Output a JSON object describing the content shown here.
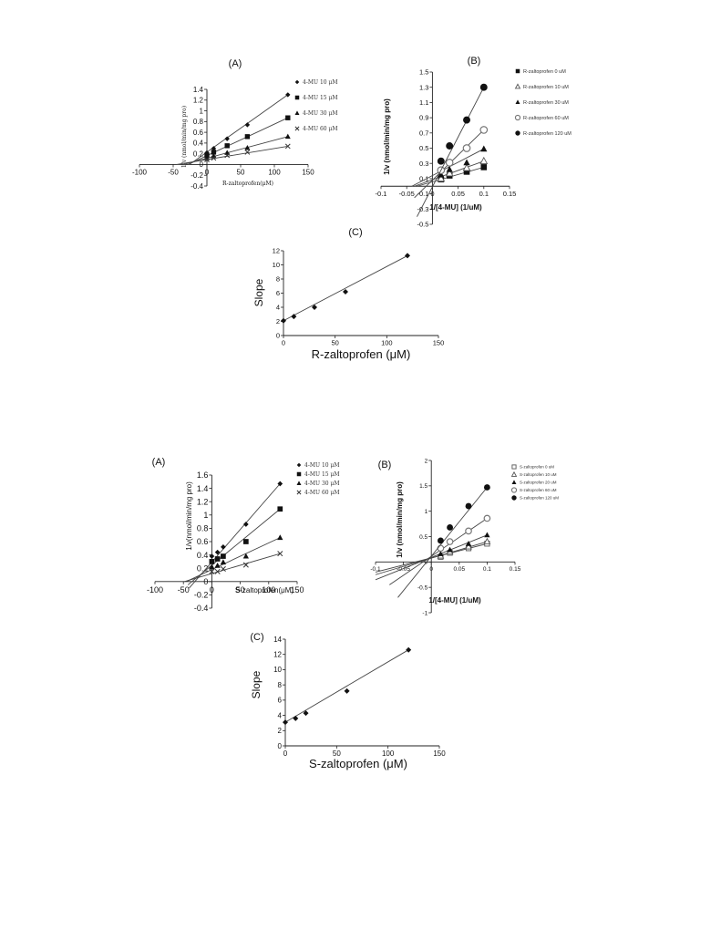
{
  "figures": [
    {
      "id": "R",
      "panels": [
        {
          "key": "A",
          "panel_label": "(A)",
          "chart_data": {
            "type": "scatter",
            "title": "(A)",
            "xlabel": "R-zaltoprofen(μM)",
            "ylabel": "1/v (nmol/min/mg pro)",
            "xlim": [
              -100,
              150
            ],
            "ylim": [
              -0.4,
              1.4
            ],
            "xticks": [
              -100,
              -50,
              0,
              50,
              100,
              150
            ],
            "xtick_labels": [
              "-100",
              "-50",
              "0",
              "50",
              "100",
              "150"
            ],
            "yticks": [
              -0.4,
              -0.2,
              0,
              0.2,
              0.4,
              0.6,
              0.8,
              1,
              1.2,
              1.4
            ],
            "ytick_labels": [
              "-0.4",
              "-0.2",
              "0",
              "0.2",
              "0.4",
              "0.6",
              "0.8",
              "1",
              "1.2",
              "1.4"
            ],
            "legend_position": "right",
            "series": [
              {
                "name": "4-MU 10 μM",
                "marker": "diamond",
                "x": [
                  0,
                  10,
                  30,
                  60,
                  120
                ],
                "y": [
                  0.22,
                  0.3,
                  0.48,
                  0.74,
                  1.3
                ],
                "line": [
                  -26,
                  0,
                  120,
                  1.3
                ]
              },
              {
                "name": "4-MU 15 μM",
                "marker": "square",
                "x": [
                  0,
                  10,
                  30,
                  60,
                  120
                ],
                "y": [
                  0.17,
                  0.23,
                  0.35,
                  0.52,
                  0.87
                ],
                "line": [
                  -28,
                  0,
                  120,
                  0.87
                ]
              },
              {
                "name": "4-MU 30 μM",
                "marker": "triangle",
                "x": [
                  0,
                  10,
                  30,
                  60,
                  120
                ],
                "y": [
                  0.12,
                  0.16,
                  0.22,
                  0.31,
                  0.52
                ],
                "line": [
                  -35,
                  0,
                  120,
                  0.52
                ]
              },
              {
                "name": "4-MU 60 μM",
                "marker": "x",
                "x": [
                  0,
                  10,
                  30,
                  60,
                  120
                ],
                "y": [
                  0.09,
                  0.12,
                  0.17,
                  0.23,
                  0.34
                ],
                "line": [
                  -45,
                  0,
                  120,
                  0.34
                ]
              }
            ]
          }
        },
        {
          "key": "B",
          "panel_label": "(B)",
          "chart_data": {
            "type": "scatter",
            "title": "(B)",
            "xlabel": "1/[4-MU] (1/uM)",
            "ylabel": "1/v (nmol/min/mg pro)",
            "xlim": [
              -0.1,
              0.15
            ],
            "ylim": [
              -0.5,
              1.5
            ],
            "xticks": [
              -0.1,
              -0.05,
              0,
              0.05,
              0.1,
              0.15
            ],
            "xtick_labels": [
              "-0.1",
              "-0.05",
              "0",
              "0.05",
              "0.1",
              "0.15"
            ],
            "yticks": [
              -0.5,
              -0.3,
              -0.1,
              0.1,
              0.3,
              0.5,
              0.7,
              0.9,
              1.1,
              1.3,
              1.5
            ],
            "ytick_labels": [
              "-0.5",
              "-0.3",
              "-0.1",
              "0.1",
              "0.3",
              "0.5",
              "0.7",
              "0.9",
              "1.1",
              "1.3",
              "1.5"
            ],
            "legend_position": "right",
            "series": [
              {
                "name": "R-zaltoprofen 0 uM",
                "marker": "square",
                "x": [
                  0.0167,
                  0.0333,
                  0.0667,
                  0.1
                ],
                "y": [
                  0.09,
                  0.14,
                  0.19,
                  0.25
                ],
                "line": [
                  -0.03,
                  0,
                  0.1,
                  0.25
                ]
              },
              {
                "name": "R-zaltoprofen 10 uM",
                "marker": "open-triangle",
                "x": [
                  0.0167,
                  0.0333,
                  0.0667,
                  0.1
                ],
                "y": [
                  0.1,
                  0.17,
                  0.24,
                  0.33
                ],
                "line": [
                  -0.035,
                  0,
                  0.1,
                  0.33
                ]
              },
              {
                "name": "R-zaltoprofen 30 uM",
                "marker": "triangle",
                "x": [
                  0.0167,
                  0.0333,
                  0.0667,
                  0.1
                ],
                "y": [
                  0.15,
                  0.22,
                  0.31,
                  0.49
                ],
                "line": [
                  -0.04,
                  0,
                  0.1,
                  0.49
                ]
              },
              {
                "name": "R-zaltoprofen 60 uM",
                "marker": "open-circle",
                "x": [
                  0.0167,
                  0.0333,
                  0.0667,
                  0.1
                ],
                "y": [
                  0.21,
                  0.31,
                  0.5,
                  0.74
                ],
                "line": [
                  -0.035,
                  -0.15,
                  0.1,
                  0.74
                ]
              },
              {
                "name": "R-zaltoprofen 120 uM",
                "marker": "circle",
                "x": [
                  0.0167,
                  0.0333,
                  0.0667,
                  0.1
                ],
                "y": [
                  0.33,
                  0.53,
                  0.87,
                  1.3
                ],
                "line": [
                  -0.03,
                  -0.4,
                  0.1,
                  1.3
                ]
              }
            ]
          }
        },
        {
          "key": "C",
          "panel_label": "(C)",
          "chart_data": {
            "type": "scatter",
            "title": "(C)",
            "xlabel": "R-zaltoprofen (μM)",
            "ylabel": "Slope",
            "xlim": [
              0,
              150
            ],
            "ylim": [
              0,
              12
            ],
            "xticks": [
              0,
              50,
              100,
              150
            ],
            "xtick_labels": [
              "0",
              "50",
              "100",
              "150"
            ],
            "yticks": [
              0,
              2,
              4,
              6,
              8,
              10,
              12
            ],
            "ytick_labels": [
              "0",
              "2",
              "4",
              "6",
              "8",
              "10",
              "12"
            ],
            "series": [
              {
                "marker": "diamond",
                "x": [
                  0,
                  10,
                  30,
                  60,
                  120
                ],
                "y": [
                  2.1,
                  2.7,
                  4.0,
                  6.2,
                  11.3
                ],
                "line": [
                  0,
                  2.1,
                  120,
                  11.3
                ]
              }
            ]
          }
        }
      ]
    },
    {
      "id": "S",
      "panels": [
        {
          "key": "A",
          "panel_label": "(A)",
          "chart_data": {
            "type": "scatter",
            "title": "(A)",
            "xlabel": "S-zaltoprofen(μM)",
            "ylabel": "1/v(nmol/min/mg pro)",
            "xlim": [
              -100,
              150
            ],
            "ylim": [
              -0.4,
              1.6
            ],
            "xticks": [
              -100,
              -50,
              0,
              50,
              100,
              150
            ],
            "xtick_labels": [
              "-100",
              "-50",
              "0",
              "50",
              "100",
              "150"
            ],
            "yticks": [
              -0.4,
              -0.2,
              0,
              0.2,
              0.4,
              0.6,
              0.8,
              1,
              1.2,
              1.4,
              1.6
            ],
            "ytick_labels": [
              "-0.4",
              "-0.2",
              "0",
              "0.2",
              "0.4",
              "0.6",
              "0.8",
              "1",
              "1.2",
              "1.4",
              "1.6"
            ],
            "legend_position": "right",
            "series": [
              {
                "name": "4-MU 10 μM",
                "marker": "diamond",
                "x": [
                  0,
                  10,
                  20,
                  60,
                  120
                ],
                "y": [
                  0.38,
                  0.44,
                  0.52,
                  0.86,
                  1.47
                ],
                "line": [
                  -40,
                  -0.1,
                  120,
                  1.47
                ]
              },
              {
                "name": "4-MU 15 μM",
                "marker": "square",
                "x": [
                  0,
                  10,
                  20,
                  60,
                  120
                ],
                "y": [
                  0.3,
                  0.34,
                  0.38,
                  0.6,
                  1.09
                ],
                "line": [
                  -42,
                  -0.05,
                  120,
                  1.09
                ]
              },
              {
                "name": "4-MU 30 μM",
                "marker": "triangle",
                "x": [
                  0,
                  10,
                  20,
                  60,
                  120
                ],
                "y": [
                  0.22,
                  0.24,
                  0.29,
                  0.38,
                  0.66
                ],
                "line": [
                  -45,
                  0,
                  120,
                  0.66
                ]
              },
              {
                "name": "4-MU 60 μM",
                "marker": "x",
                "x": [
                  0,
                  10,
                  20,
                  60,
                  120
                ],
                "y": [
                  0.15,
                  0.15,
                  0.19,
                  0.25,
                  0.42
                ],
                "line": [
                  -48,
                  0,
                  120,
                  0.42
                ]
              }
            ]
          }
        },
        {
          "key": "B",
          "panel_label": "(B)",
          "chart_data": {
            "type": "scatter",
            "title": "(B)",
            "xlabel": "1/[4-MU] (1/uM)",
            "ylabel": "1/v (nmol/min/mg pro)",
            "xlim": [
              -0.1,
              0.15
            ],
            "ylim": [
              -1,
              2
            ],
            "xticks": [
              -0.1,
              -0.05,
              0,
              0.05,
              0.1,
              0.15
            ],
            "xtick_labels": [
              "-0.1",
              "-0.05",
              "0",
              "0.05",
              "0.1",
              "0.15"
            ],
            "yticks": [
              -1,
              -0.5,
              0,
              0.5,
              1,
              1.5,
              2
            ],
            "ytick_labels": [
              "-1",
              "-0.5",
              "0",
              "0.5",
              "1",
              "1.5",
              "2"
            ],
            "legend_position": "right",
            "series": [
              {
                "name": "S-zaltoprofen 0 uM",
                "marker": "open-square",
                "x": [
                  0.0167,
                  0.0333,
                  0.0667,
                  0.1
                ],
                "y": [
                  0.1,
                  0.18,
                  0.27,
                  0.36
                ],
                "line": [
                  -0.1,
                  -0.2,
                  0.1,
                  0.36
                ]
              },
              {
                "name": "S-zaltoprofen 10 uM",
                "marker": "open-triangle",
                "x": [
                  0.0167,
                  0.0333,
                  0.0667,
                  0.1
                ],
                "y": [
                  0.12,
                  0.2,
                  0.3,
                  0.4
                ],
                "line": [
                  -0.1,
                  -0.25,
                  0.1,
                  0.4
                ]
              },
              {
                "name": "S-zaltoprofen 20 uM",
                "marker": "triangle",
                "x": [
                  0.0167,
                  0.0333,
                  0.0667,
                  0.1
                ],
                "y": [
                  0.16,
                  0.24,
                  0.36,
                  0.53
                ],
                "line": [
                  -0.1,
                  -0.35,
                  0.1,
                  0.53
                ]
              },
              {
                "name": "S-zaltoprofen 60 uM",
                "marker": "open-circle",
                "x": [
                  0.0167,
                  0.0333,
                  0.0667,
                  0.1
                ],
                "y": [
                  0.27,
                  0.4,
                  0.61,
                  0.86
                ],
                "line": [
                  -0.075,
                  -0.45,
                  0.1,
                  0.86
                ]
              },
              {
                "name": "S-zaltoprofen 120 uM",
                "marker": "circle",
                "x": [
                  0.0167,
                  0.0333,
                  0.0667,
                  0.1
                ],
                "y": [
                  0.42,
                  0.68,
                  1.1,
                  1.47
                ],
                "line": [
                  -0.06,
                  -0.7,
                  0.1,
                  1.47
                ]
              }
            ]
          }
        },
        {
          "key": "C",
          "panel_label": "(C)",
          "chart_data": {
            "type": "scatter",
            "title": "(C)",
            "xlabel": "S-zaltoprofen (μM)",
            "ylabel": "Slope",
            "xlim": [
              0,
              150
            ],
            "ylim": [
              0,
              14
            ],
            "xticks": [
              0,
              50,
              100,
              150
            ],
            "xtick_labels": [
              "0",
              "50",
              "100",
              "150"
            ],
            "yticks": [
              0,
              2,
              4,
              6,
              8,
              10,
              12,
              14
            ],
            "ytick_labels": [
              "0",
              "2",
              "4",
              "6",
              "8",
              "10",
              "12",
              "14"
            ],
            "series": [
              {
                "marker": "diamond",
                "x": [
                  0,
                  10,
                  20,
                  60,
                  120
                ],
                "y": [
                  3.1,
                  3.6,
                  4.3,
                  7.2,
                  12.6
                ],
                "line": [
                  0,
                  3.1,
                  120,
                  12.6
                ]
              }
            ]
          }
        }
      ]
    }
  ]
}
